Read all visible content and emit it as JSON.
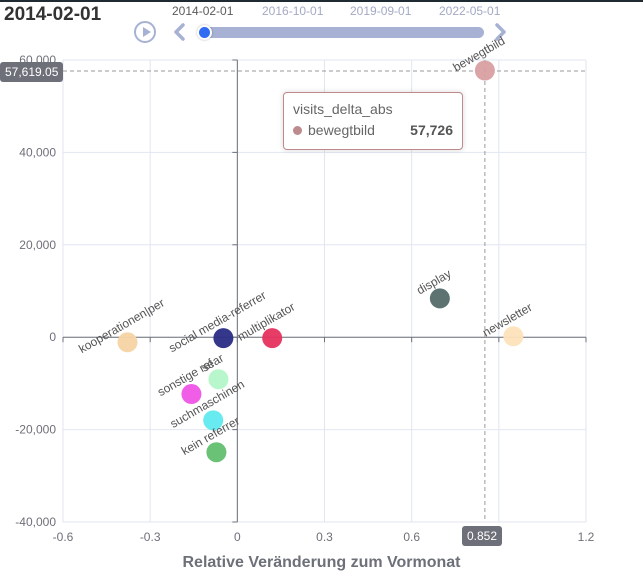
{
  "header": {
    "title": "2014-02-01"
  },
  "timeline": {
    "labels": [
      "2014-02-01",
      "2016-10-01",
      "2019-09-01",
      "2022-05-01"
    ],
    "current": "2014-02-01",
    "play_icon": "play-icon",
    "prev_icon": "chevron-left-icon",
    "next_icon": "chevron-right-icon",
    "colors": {
      "track": "#a7b1d3",
      "handle": "#316bf3",
      "label_active": "#5a5a5a",
      "label_inactive": "#a2a9c4"
    }
  },
  "tooltip": {
    "title": "visits_delta_abs",
    "series_name": "bewegtbild",
    "value": "57,726",
    "marker_color": "#bd8a8d"
  },
  "axis_pointer": {
    "y_label": "57,619.05",
    "x_label": "0.852"
  },
  "chart_data": {
    "type": "scatter",
    "title": "2014-02-01",
    "xlabel": "Relative Veränderung zum Vormonat",
    "ylabel": "",
    "xlim": [
      -0.6,
      1.2
    ],
    "ylim": [
      -40000,
      60000
    ],
    "x_ticks": [
      "-0.6",
      "-0.3",
      "0",
      "0.3",
      "0.6",
      "0.9",
      "1.2"
    ],
    "x_tick_labels_visible": [
      "-0.6",
      "-0.3",
      "0",
      "0.3",
      "0.6",
      "1.2"
    ],
    "y_ticks": [
      "-40,000",
      "-20,000",
      "0",
      "20,000",
      "40,000",
      "60,000"
    ],
    "grid": true,
    "points": [
      {
        "name": "bewegtbild",
        "x": 0.852,
        "y": 57726,
        "color": "#d9a0a3",
        "label": "bewegtbild"
      },
      {
        "name": "display",
        "x": 0.697,
        "y": 8400,
        "color": "#546b6a",
        "label": "display"
      },
      {
        "name": "newsletter",
        "x": 0.95,
        "y": 200,
        "color": "#fde3bb",
        "label": "newsletter"
      },
      {
        "name": "multiplikator",
        "x": 0.12,
        "y": -200,
        "color": "#e5325e",
        "label": "multiplikator"
      },
      {
        "name": "social media-referrer",
        "x": -0.048,
        "y": -200,
        "color": "#2a2d84",
        "label": "social media-referrer"
      },
      {
        "name": "kooperationen|per",
        "x": -0.378,
        "y": -1100,
        "color": "#f5d4a4",
        "label": "kooperationen|per"
      },
      {
        "name": "sonstige ref",
        "x": -0.158,
        "y": -12300,
        "color": "#ef55e6",
        "label": "sonstige ref"
      },
      {
        "name": "sear",
        "x": -0.065,
        "y": -9100,
        "color": "#b4f5c9",
        "label": "sear"
      },
      {
        "name": "suchmaschinen",
        "x": -0.083,
        "y": -18000,
        "color": "#5fe9ef",
        "label": "suchmaschinen"
      },
      {
        "name": "kein referrer",
        "x": -0.072,
        "y": -24900,
        "color": "#62bf6f",
        "label": "kein referrer"
      }
    ]
  }
}
